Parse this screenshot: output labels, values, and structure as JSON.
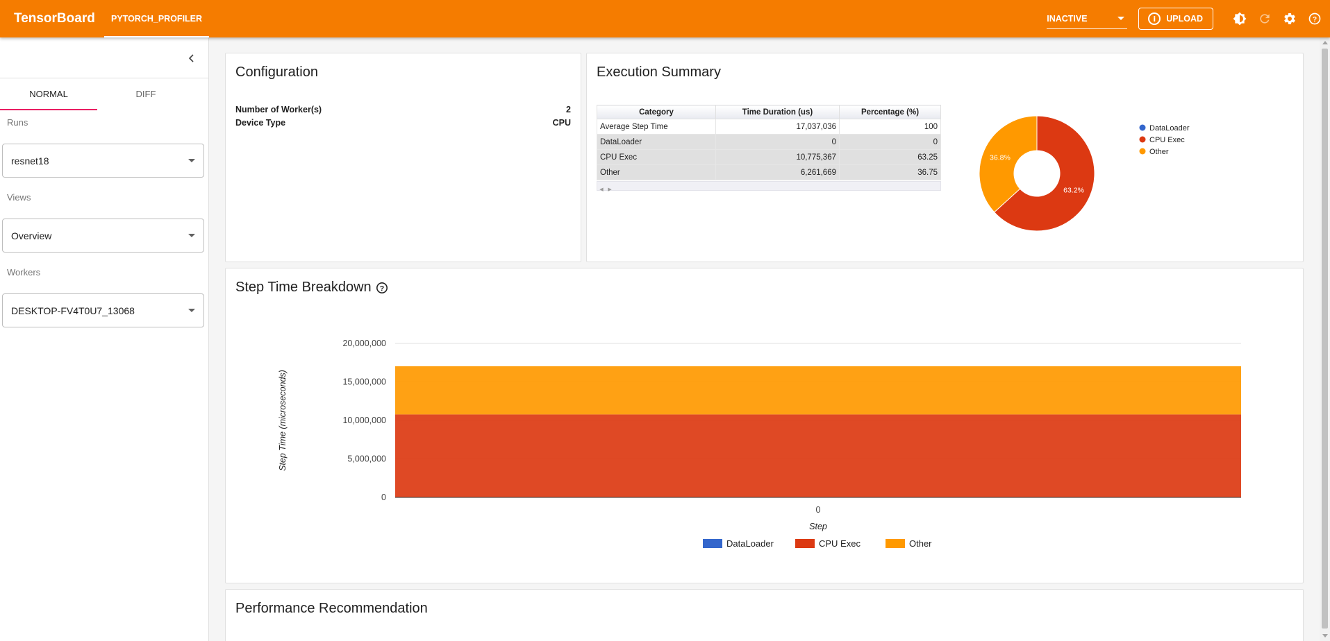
{
  "app": {
    "brand": "TensorBoard",
    "plugin_tab": "PYTORCH_PROFILER",
    "status": "INACTIVE",
    "upload_label": "UPLOAD"
  },
  "icons": {
    "info": "info-icon",
    "theme": "brightness-icon",
    "refresh": "refresh-icon",
    "settings": "gear-icon",
    "help": "help-icon",
    "collapse": "chevron-left-icon"
  },
  "sidebar": {
    "mode_tabs": [
      "NORMAL",
      "DIFF"
    ],
    "active_tab": "NORMAL",
    "runs_label": "Runs",
    "runs_value": "resnet18",
    "views_label": "Views",
    "views_value": "Overview",
    "workers_label": "Workers",
    "workers_value": "DESKTOP-FV4T0U7_13068"
  },
  "configuration": {
    "title": "Configuration",
    "rows": [
      {
        "label": "Number of Worker(s)",
        "value": "2"
      },
      {
        "label": "Device Type",
        "value": "CPU"
      }
    ]
  },
  "execution_summary": {
    "title": "Execution Summary",
    "columns": [
      "Category",
      "Time Duration (us)",
      "Percentage (%)"
    ],
    "rows": [
      {
        "category": "Average Step Time",
        "duration": "17,037,036",
        "percent": "100"
      },
      {
        "category": "DataLoader",
        "duration": "0",
        "percent": "0"
      },
      {
        "category": "CPU Exec",
        "duration": "10,775,367",
        "percent": "63.25"
      },
      {
        "category": "Other",
        "duration": "6,261,669",
        "percent": "36.75"
      }
    ]
  },
  "step_time": {
    "title": "Step Time Breakdown",
    "help_icon": "question-circle-icon"
  },
  "performance": {
    "title": "Performance Recommendation"
  },
  "colors": {
    "topbar": "#f57c00",
    "dataloader": "#3366cc",
    "cpu_exec": "#dc3912",
    "other": "#ff9900",
    "tab_indicator": "#e91e63"
  },
  "chart_data": [
    {
      "type": "pie",
      "donut": true,
      "categories": [
        "DataLoader",
        "CPU Exec",
        "Other"
      ],
      "values": [
        0,
        10775367,
        6261669
      ],
      "slice_labels": [
        "",
        "63.2%",
        "36.8%"
      ],
      "legend": [
        "DataLoader",
        "CPU Exec",
        "Other"
      ],
      "legend_position": "right"
    },
    {
      "type": "area",
      "stacked": true,
      "x": [
        0
      ],
      "xlabel": "Step",
      "ylabel": "Step Time (microseconds)",
      "ylim": [
        0,
        20000000
      ],
      "yticks": [
        "0",
        "5,000,000",
        "10,000,000",
        "15,000,000",
        "20,000,000"
      ],
      "xticks": [
        "0"
      ],
      "series": [
        {
          "name": "DataLoader",
          "values": [
            0
          ]
        },
        {
          "name": "CPU Exec",
          "values": [
            10775367
          ]
        },
        {
          "name": "Other",
          "values": [
            6261669
          ]
        }
      ],
      "legend_position": "bottom"
    }
  ]
}
